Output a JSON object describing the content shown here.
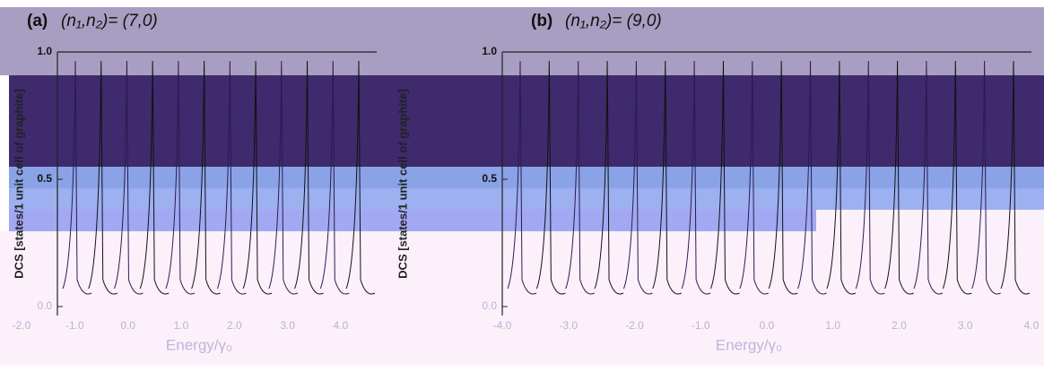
{
  "panels": [
    {
      "tag": "(a)",
      "title": "(n₁,n₂)= (7,0)",
      "y_label": "DCS [states/1 unit cell of graphite]",
      "x_label": "Energy/γ₀",
      "y_ticks": [
        "1.0",
        "0.5",
        "0.0"
      ],
      "x_ticks": [
        "-2.0",
        "-1.0",
        "0.0",
        "1.0",
        "2.0",
        "3.0",
        "4.0"
      ]
    },
    {
      "tag": "(b)",
      "title": "(n₁,n₂)= (9,0)",
      "y_label": "DCS [states/1 unit cell of graphite]",
      "x_label": "Energy/γ₀",
      "y_ticks": [
        "1.0",
        "0.5",
        "0.0"
      ],
      "x_ticks": [
        "-4.0",
        "-3.0",
        "-2.0",
        "-1.0",
        "0.0",
        "1.0",
        "2.0",
        "3.0",
        "4.0"
      ]
    }
  ]
}
